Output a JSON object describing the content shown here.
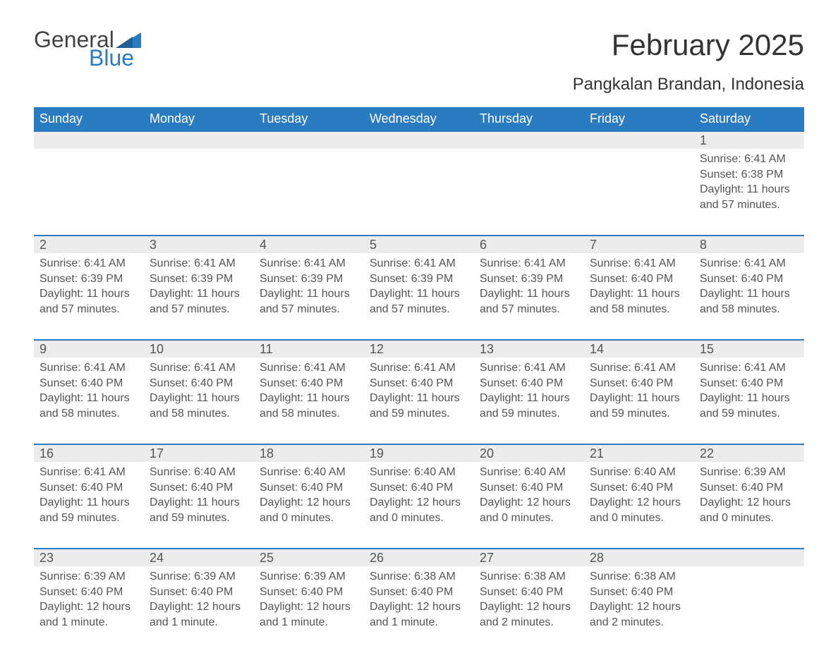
{
  "logo": {
    "text_general": "General",
    "text_blue": "Blue",
    "flag_color": "#2a7bbf"
  },
  "title": "February 2025",
  "location": "Pangkalan Brandan, Indonesia",
  "colors": {
    "header_bg": "#2a7bbf",
    "header_text": "#ffffff",
    "daynum_bg": "#ececec",
    "body_text": "#555555",
    "page_bg": "#ffffff"
  },
  "weekdays": [
    "Sunday",
    "Monday",
    "Tuesday",
    "Wednesday",
    "Thursday",
    "Friday",
    "Saturday"
  ],
  "weeks": [
    [
      null,
      null,
      null,
      null,
      null,
      null,
      {
        "n": "1",
        "sunrise": "Sunrise: 6:41 AM",
        "sunset": "Sunset: 6:38 PM",
        "daylight": "Daylight: 11 hours and 57 minutes."
      }
    ],
    [
      {
        "n": "2",
        "sunrise": "Sunrise: 6:41 AM",
        "sunset": "Sunset: 6:39 PM",
        "daylight": "Daylight: 11 hours and 57 minutes."
      },
      {
        "n": "3",
        "sunrise": "Sunrise: 6:41 AM",
        "sunset": "Sunset: 6:39 PM",
        "daylight": "Daylight: 11 hours and 57 minutes."
      },
      {
        "n": "4",
        "sunrise": "Sunrise: 6:41 AM",
        "sunset": "Sunset: 6:39 PM",
        "daylight": "Daylight: 11 hours and 57 minutes."
      },
      {
        "n": "5",
        "sunrise": "Sunrise: 6:41 AM",
        "sunset": "Sunset: 6:39 PM",
        "daylight": "Daylight: 11 hours and 57 minutes."
      },
      {
        "n": "6",
        "sunrise": "Sunrise: 6:41 AM",
        "sunset": "Sunset: 6:39 PM",
        "daylight": "Daylight: 11 hours and 57 minutes."
      },
      {
        "n": "7",
        "sunrise": "Sunrise: 6:41 AM",
        "sunset": "Sunset: 6:40 PM",
        "daylight": "Daylight: 11 hours and 58 minutes."
      },
      {
        "n": "8",
        "sunrise": "Sunrise: 6:41 AM",
        "sunset": "Sunset: 6:40 PM",
        "daylight": "Daylight: 11 hours and 58 minutes."
      }
    ],
    [
      {
        "n": "9",
        "sunrise": "Sunrise: 6:41 AM",
        "sunset": "Sunset: 6:40 PM",
        "daylight": "Daylight: 11 hours and 58 minutes."
      },
      {
        "n": "10",
        "sunrise": "Sunrise: 6:41 AM",
        "sunset": "Sunset: 6:40 PM",
        "daylight": "Daylight: 11 hours and 58 minutes."
      },
      {
        "n": "11",
        "sunrise": "Sunrise: 6:41 AM",
        "sunset": "Sunset: 6:40 PM",
        "daylight": "Daylight: 11 hours and 58 minutes."
      },
      {
        "n": "12",
        "sunrise": "Sunrise: 6:41 AM",
        "sunset": "Sunset: 6:40 PM",
        "daylight": "Daylight: 11 hours and 59 minutes."
      },
      {
        "n": "13",
        "sunrise": "Sunrise: 6:41 AM",
        "sunset": "Sunset: 6:40 PM",
        "daylight": "Daylight: 11 hours and 59 minutes."
      },
      {
        "n": "14",
        "sunrise": "Sunrise: 6:41 AM",
        "sunset": "Sunset: 6:40 PM",
        "daylight": "Daylight: 11 hours and 59 minutes."
      },
      {
        "n": "15",
        "sunrise": "Sunrise: 6:41 AM",
        "sunset": "Sunset: 6:40 PM",
        "daylight": "Daylight: 11 hours and 59 minutes."
      }
    ],
    [
      {
        "n": "16",
        "sunrise": "Sunrise: 6:41 AM",
        "sunset": "Sunset: 6:40 PM",
        "daylight": "Daylight: 11 hours and 59 minutes."
      },
      {
        "n": "17",
        "sunrise": "Sunrise: 6:40 AM",
        "sunset": "Sunset: 6:40 PM",
        "daylight": "Daylight: 11 hours and 59 minutes."
      },
      {
        "n": "18",
        "sunrise": "Sunrise: 6:40 AM",
        "sunset": "Sunset: 6:40 PM",
        "daylight": "Daylight: 12 hours and 0 minutes."
      },
      {
        "n": "19",
        "sunrise": "Sunrise: 6:40 AM",
        "sunset": "Sunset: 6:40 PM",
        "daylight": "Daylight: 12 hours and 0 minutes."
      },
      {
        "n": "20",
        "sunrise": "Sunrise: 6:40 AM",
        "sunset": "Sunset: 6:40 PM",
        "daylight": "Daylight: 12 hours and 0 minutes."
      },
      {
        "n": "21",
        "sunrise": "Sunrise: 6:40 AM",
        "sunset": "Sunset: 6:40 PM",
        "daylight": "Daylight: 12 hours and 0 minutes."
      },
      {
        "n": "22",
        "sunrise": "Sunrise: 6:39 AM",
        "sunset": "Sunset: 6:40 PM",
        "daylight": "Daylight: 12 hours and 0 minutes."
      }
    ],
    [
      {
        "n": "23",
        "sunrise": "Sunrise: 6:39 AM",
        "sunset": "Sunset: 6:40 PM",
        "daylight": "Daylight: 12 hours and 1 minute."
      },
      {
        "n": "24",
        "sunrise": "Sunrise: 6:39 AM",
        "sunset": "Sunset: 6:40 PM",
        "daylight": "Daylight: 12 hours and 1 minute."
      },
      {
        "n": "25",
        "sunrise": "Sunrise: 6:39 AM",
        "sunset": "Sunset: 6:40 PM",
        "daylight": "Daylight: 12 hours and 1 minute."
      },
      {
        "n": "26",
        "sunrise": "Sunrise: 6:38 AM",
        "sunset": "Sunset: 6:40 PM",
        "daylight": "Daylight: 12 hours and 1 minute."
      },
      {
        "n": "27",
        "sunrise": "Sunrise: 6:38 AM",
        "sunset": "Sunset: 6:40 PM",
        "daylight": "Daylight: 12 hours and 2 minutes."
      },
      {
        "n": "28",
        "sunrise": "Sunrise: 6:38 AM",
        "sunset": "Sunset: 6:40 PM",
        "daylight": "Daylight: 12 hours and 2 minutes."
      },
      null
    ]
  ]
}
